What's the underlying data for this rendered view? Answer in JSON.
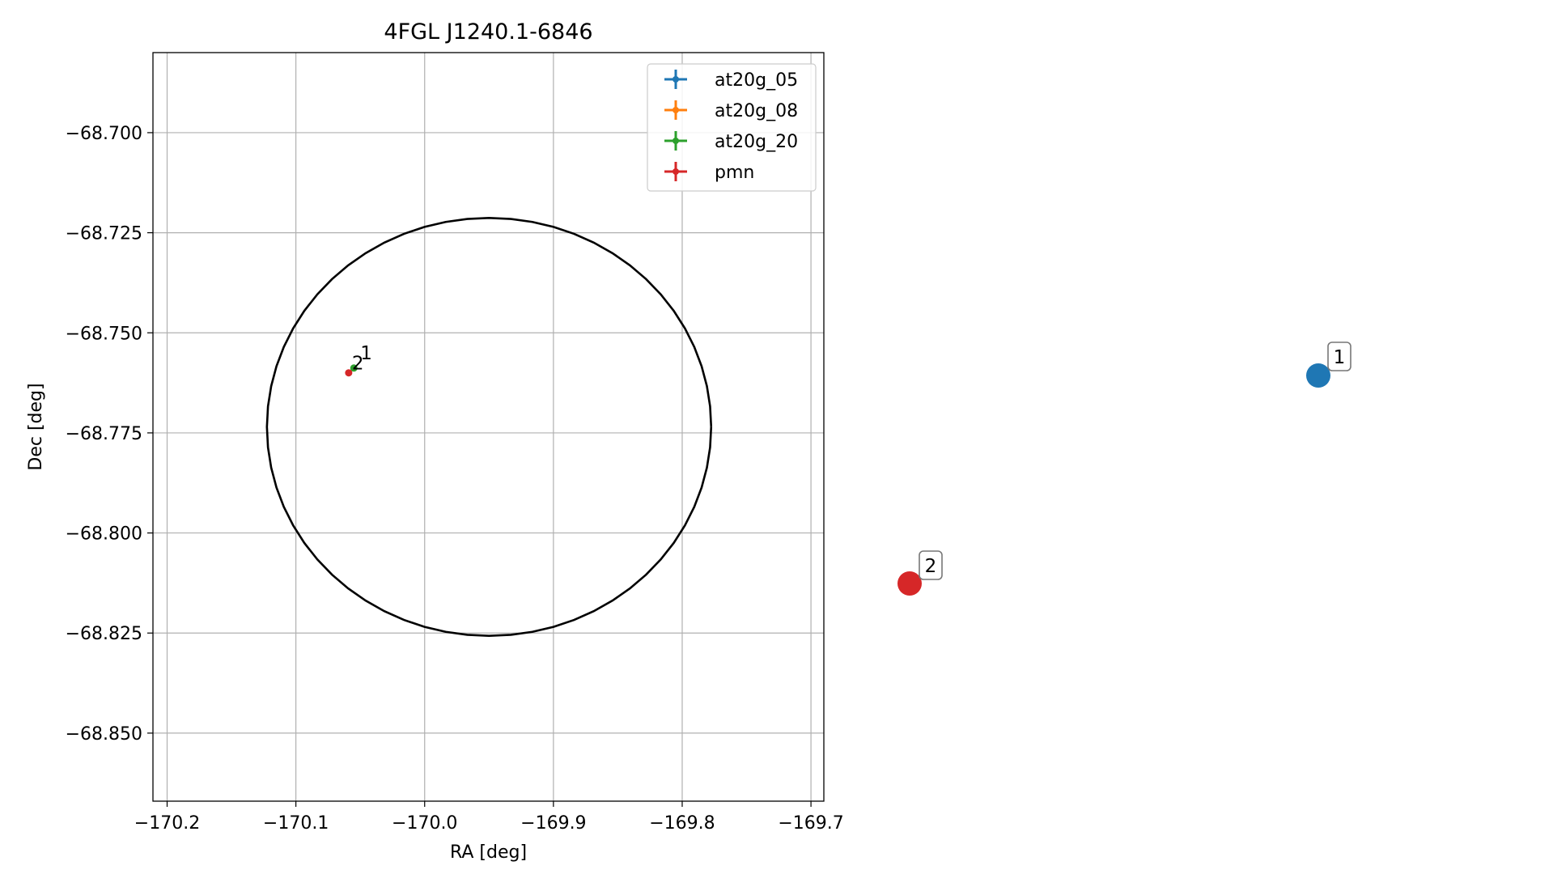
{
  "chart_data": {
    "type": "scatter",
    "title": "4FGL J1240.1-6846",
    "xlabel": "RA [deg]",
    "ylabel": "Dec [deg]",
    "xlim": [
      -170.211,
      -169.69
    ],
    "ylim": [
      -68.867,
      -68.68
    ],
    "x_ticks": [
      -170.2,
      -170.1,
      -170.0,
      -169.9,
      -169.8,
      -169.7
    ],
    "x_tick_labels": [
      "−170.2",
      "−170.1",
      "−170.0",
      "−169.9",
      "−169.8",
      "−169.7"
    ],
    "y_ticks": [
      -68.7,
      -68.725,
      -68.75,
      -68.775,
      -68.8,
      -68.825,
      -68.85
    ],
    "y_tick_labels": [
      "−68.700",
      "−68.725",
      "−68.750",
      "−68.775",
      "−68.800",
      "−68.825",
      "−68.850"
    ],
    "grid": true,
    "legend_position": "top-right",
    "ellipse": {
      "center": [
        -169.95,
        -68.7735
      ],
      "semi_axis_ra": 0.1725,
      "semi_axis_dec": 0.0522,
      "color": "#000000"
    },
    "series": [
      {
        "name": "at20g_05",
        "color": "#1f77b4",
        "points": []
      },
      {
        "name": "at20g_08",
        "color": "#ff7f0e",
        "points": []
      },
      {
        "name": "at20g_20",
        "color": "#2ca02c",
        "points": [
          {
            "x": -170.055,
            "y": -68.7588,
            "label": "1"
          }
        ]
      },
      {
        "name": "pmn",
        "color": "#d62728",
        "points": [
          {
            "x": -170.059,
            "y": -68.76,
            "label": "2"
          }
        ]
      }
    ],
    "side_markers": [
      {
        "label": "1",
        "color": "#1f77b4"
      },
      {
        "label": "2",
        "color": "#d62728"
      }
    ]
  }
}
